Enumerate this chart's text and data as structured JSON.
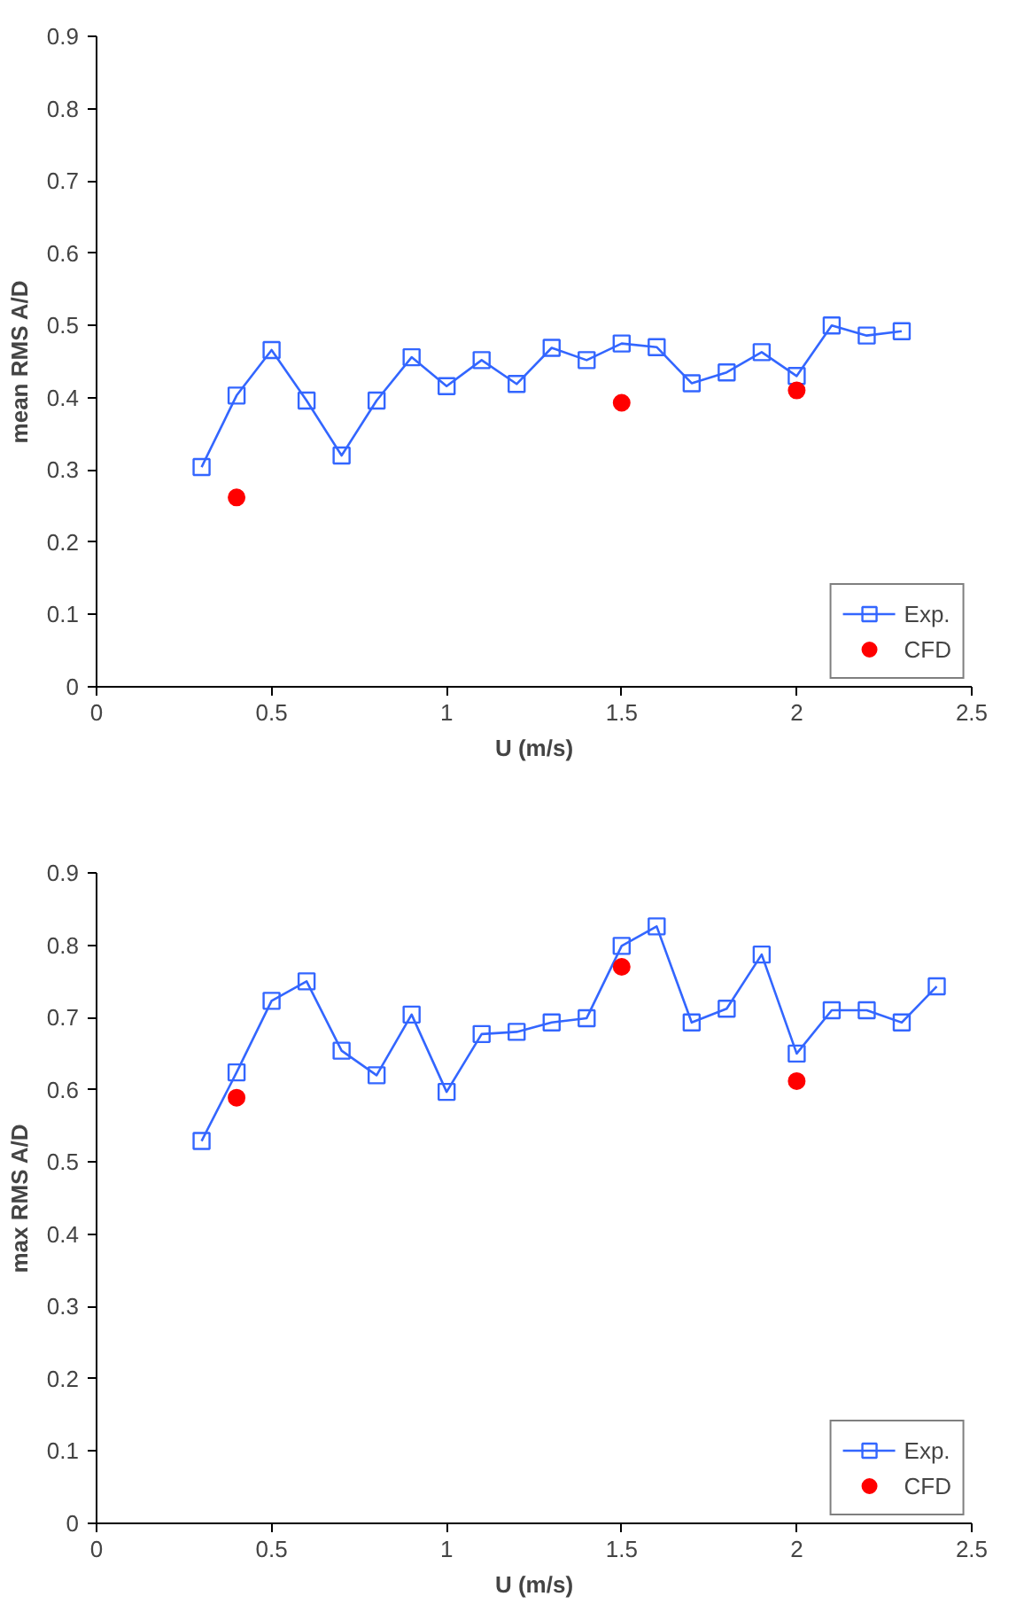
{
  "chart_data": [
    {
      "type": "line",
      "xlabel": "U (m/s)",
      "ylabel": "mean RMS A/D",
      "xlim": [
        0,
        2.5
      ],
      "ylim": [
        0,
        0.9
      ],
      "xticks": [
        0,
        0.5,
        1,
        1.5,
        2,
        2.5
      ],
      "yticks": [
        0,
        0.1,
        0.2,
        0.3,
        0.4,
        0.5,
        0.6,
        0.7,
        0.8,
        0.9
      ],
      "grid": false,
      "legend": "bottom right",
      "series": [
        {
          "name": "Exp.",
          "color": "#3366ff",
          "marker": "square",
          "x": [
            0.3,
            0.4,
            0.5,
            0.6,
            0.7,
            0.8,
            0.9,
            1.0,
            1.1,
            1.2,
            1.3,
            1.4,
            1.5,
            1.6,
            1.7,
            1.8,
            1.9,
            2.0,
            2.1,
            2.2,
            2.3
          ],
          "values": [
            0.304,
            0.403,
            0.466,
            0.396,
            0.32,
            0.396,
            0.456,
            0.416,
            0.452,
            0.419,
            0.469,
            0.452,
            0.475,
            0.47,
            0.42,
            0.435,
            0.463,
            0.43,
            0.5,
            0.486,
            0.492
          ]
        },
        {
          "name": "CFD",
          "type": "scatter",
          "color": "#ff0000",
          "marker": "circle",
          "x": [
            0.4,
            1.5,
            2.0
          ],
          "values": [
            0.262,
            0.393,
            0.41
          ]
        }
      ]
    },
    {
      "type": "line",
      "xlabel": "U (m/s)",
      "ylabel": "max RMS A/D",
      "xlim": [
        0,
        2.5
      ],
      "ylim": [
        0,
        0.9
      ],
      "xticks": [
        0,
        0.5,
        1,
        1.5,
        2,
        2.5
      ],
      "yticks": [
        0,
        0.1,
        0.2,
        0.3,
        0.4,
        0.5,
        0.6,
        0.7,
        0.8,
        0.9
      ],
      "grid": false,
      "legend": "bottom right",
      "series": [
        {
          "name": "Exp.",
          "color": "#3366ff",
          "marker": "square",
          "x": [
            0.3,
            0.4,
            0.5,
            0.6,
            0.7,
            0.8,
            0.9,
            1.0,
            1.1,
            1.2,
            1.3,
            1.4,
            1.5,
            1.6,
            1.7,
            1.8,
            1.9,
            2.0,
            2.1,
            2.2,
            2.3,
            2.4
          ],
          "values": [
            0.529,
            0.624,
            0.723,
            0.75,
            0.654,
            0.62,
            0.704,
            0.597,
            0.677,
            0.68,
            0.693,
            0.699,
            0.799,
            0.826,
            0.693,
            0.712,
            0.787,
            0.65,
            0.71,
            0.71,
            0.693,
            0.743
          ]
        },
        {
          "name": "CFD",
          "type": "scatter",
          "color": "#ff0000",
          "marker": "circle",
          "x": [
            0.4,
            1.5,
            2.0
          ],
          "values": [
            0.589,
            0.77,
            0.612
          ]
        }
      ]
    }
  ]
}
